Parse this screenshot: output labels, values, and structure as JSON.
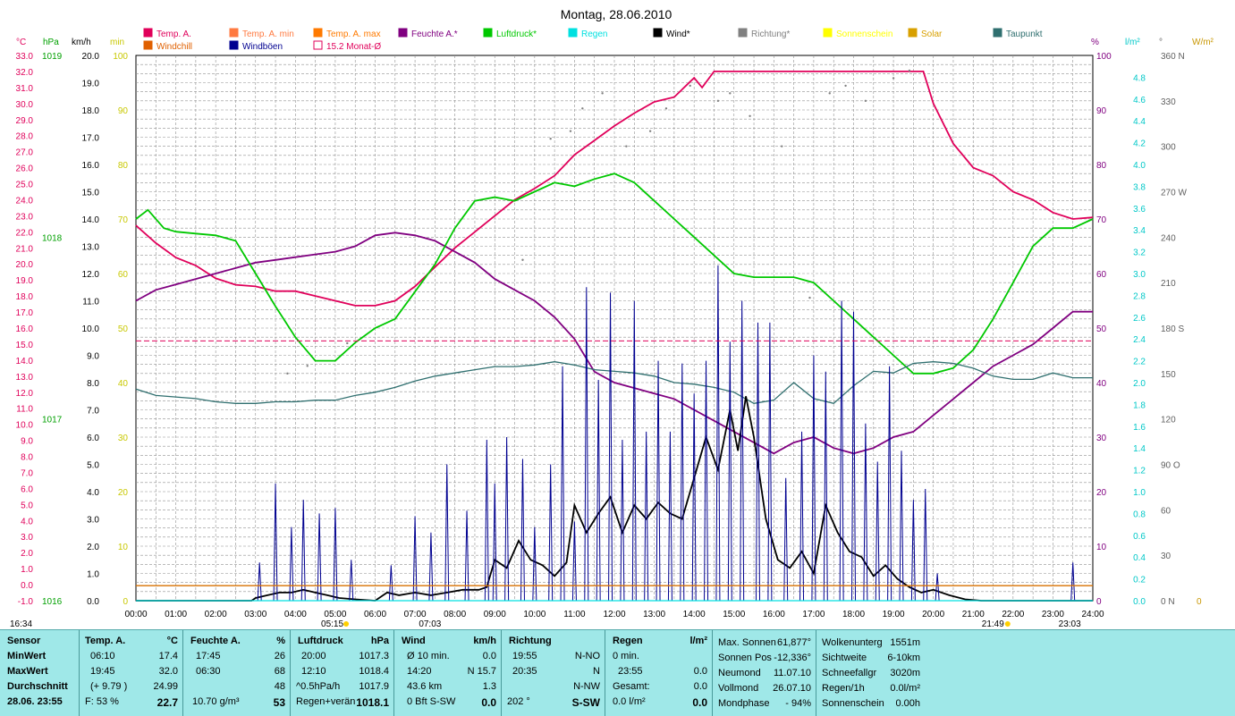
{
  "chart_data": {
    "type": "line",
    "title": "Montag, 28.06.2010",
    "x_ticks": [
      "00:00",
      "01:00",
      "02:00",
      "03:00",
      "04:00",
      "05:00",
      "06:00",
      "07:00",
      "08:00",
      "09:00",
      "10:00",
      "11:00",
      "12:00",
      "13:00",
      "14:00",
      "15:00",
      "16:00",
      "17:00",
      "18:00",
      "19:00",
      "20:00",
      "21:00",
      "22:00",
      "23:00",
      "24:00"
    ],
    "x_range_hours": [
      0,
      24
    ],
    "sun_marks": {
      "sunrise": "05:15",
      "sunrise_hour": 5.25,
      "noon": "07:03",
      "noon_hour": 7.05,
      "sunset": "21:49",
      "sunset_hour": 21.82,
      "moon": "23:03",
      "moon_hour": 23.05
    },
    "axes": {
      "temp": {
        "unit": "°C",
        "min": -1.0,
        "max": 33.0,
        "step": 1.0,
        "color": "#e0005a"
      },
      "pressure": {
        "unit": "hPa",
        "min": 1016,
        "max": 1019,
        "ticks": [
          1016,
          1017,
          1018,
          1019
        ],
        "color": "#00a000"
      },
      "wind": {
        "unit": "km/h",
        "min": 0.0,
        "max": 20.0,
        "step": 1.0,
        "color": "#000000"
      },
      "min": {
        "unit": "min",
        "min": 0,
        "max": 100,
        "step": 10,
        "color": "#c8c800"
      },
      "humidity": {
        "unit": "%",
        "min": 0,
        "max": 100,
        "step": 10,
        "color": "#800080"
      },
      "rain": {
        "unit": "l/m²",
        "min": 0.0,
        "max": 5.0,
        "step": 0.2,
        "color": "#00c8c8"
      },
      "direction": {
        "unit": "°",
        "ticks": [
          [
            0,
            "0 N"
          ],
          [
            30,
            "30"
          ],
          [
            60,
            "60"
          ],
          [
            90,
            "90 O"
          ],
          [
            120,
            "120"
          ],
          [
            150,
            "150"
          ],
          [
            180,
            "180 S"
          ],
          [
            210,
            "210"
          ],
          [
            240,
            "240"
          ],
          [
            270,
            "270 W"
          ],
          [
            300,
            "300"
          ],
          [
            330,
            "330"
          ],
          [
            360,
            "360 N"
          ]
        ]
      },
      "solar": {
        "unit": "W/m²",
        "min": 0,
        "max": 0,
        "color": "#c89600"
      }
    },
    "legend": [
      {
        "label": "Temp. A.",
        "color": "#e0005a"
      },
      {
        "label": "Temp. A. min",
        "color": "#ff7a40"
      },
      {
        "label": "Temp. A. max",
        "color": "#ff7a00"
      },
      {
        "label": "Feuchte A.*",
        "color": "#800080"
      },
      {
        "label": "Luftdruck*",
        "color": "#00c800"
      },
      {
        "label": "Regen",
        "color": "#00e0e0"
      },
      {
        "label": "Wind*",
        "color": "#000000"
      },
      {
        "label": "Richtung*",
        "color": "#808080"
      },
      {
        "label": "Sonnenschein",
        "color": "#ffff00"
      },
      {
        "label": "Solar",
        "color": "#d8a000"
      },
      {
        "label": "Taupunkt",
        "color": "#2f6f6f"
      },
      {
        "label": "Windchill",
        "color": "#e06000"
      },
      {
        "label": "Windböen",
        "color": "#000090"
      },
      {
        "label": "15.2 Monat-Ø",
        "color": "#e0005a"
      }
    ],
    "series": [
      {
        "name": "Temp. A.",
        "axis": "temp",
        "color": "#e0005a",
        "x": [
          0,
          0.5,
          1,
          1.5,
          2,
          2.5,
          3,
          3.5,
          4,
          4.5,
          5,
          5.5,
          6,
          6.5,
          7,
          7.5,
          8,
          8.5,
          9,
          9.5,
          10,
          10.5,
          11,
          11.5,
          12,
          12.5,
          13,
          13.5,
          14,
          14.2,
          14.5,
          15,
          15.5,
          16,
          16.5,
          17,
          17.5,
          18,
          18.5,
          19,
          19.5,
          19.75,
          20,
          20.5,
          21,
          21.5,
          22,
          22.5,
          23,
          23.5,
          24
        ],
        "y": [
          22.4,
          21.3,
          20.4,
          19.9,
          19.1,
          18.7,
          18.6,
          18.3,
          18.3,
          18.0,
          17.7,
          17.4,
          17.4,
          17.7,
          18.6,
          19.8,
          21.0,
          22.0,
          23.0,
          24.0,
          24.7,
          25.5,
          26.8,
          27.7,
          28.6,
          29.4,
          30.1,
          30.4,
          31.6,
          31.0,
          32.0,
          32.0,
          32.0,
          32.0,
          32.0,
          32.0,
          32.0,
          32.0,
          32.0,
          32.0,
          32.0,
          32.0,
          30.0,
          27.5,
          26.0,
          25.5,
          24.5,
          24.0,
          23.2,
          22.8,
          22.9
        ]
      },
      {
        "name": "Feuchte A.*",
        "axis": "humidity",
        "color": "#800080",
        "x": [
          0,
          0.5,
          1,
          1.5,
          2,
          2.5,
          3,
          3.5,
          4,
          4.5,
          5,
          5.5,
          6,
          6.5,
          7,
          7.5,
          8,
          8.5,
          9,
          9.5,
          10,
          10.5,
          11,
          11.5,
          12,
          12.5,
          13,
          13.5,
          14,
          14.5,
          15,
          15.5,
          16,
          16.5,
          17,
          17.5,
          18,
          18.5,
          19,
          19.5,
          20,
          20.5,
          21,
          21.5,
          22,
          22.5,
          23,
          23.5,
          24
        ],
        "y": [
          55,
          57,
          58,
          59,
          60,
          61,
          62,
          62.5,
          63,
          63.5,
          64,
          65,
          67,
          67.5,
          67,
          66,
          64,
          62,
          59,
          57,
          55,
          52,
          48,
          42,
          40,
          39,
          38,
          37,
          35,
          33,
          31,
          29,
          27,
          29,
          30,
          28,
          27,
          28,
          30,
          31,
          34,
          37,
          40,
          43,
          45,
          47,
          50,
          53,
          53
        ]
      },
      {
        "name": "Luftdruck*",
        "axis": "pressure",
        "color": "#00c800",
        "x": [
          0,
          0.3,
          0.7,
          1,
          1.5,
          2,
          2.5,
          3,
          3.5,
          4,
          4.5,
          5,
          5.5,
          6,
          6.5,
          7,
          7.5,
          8,
          8.5,
          9,
          9.5,
          10,
          10.5,
          11,
          11.5,
          12,
          12.5,
          13,
          13.5,
          14,
          14.5,
          15,
          15.5,
          16,
          16.5,
          17,
          17.5,
          18,
          18.5,
          19,
          19.5,
          20,
          20.5,
          21,
          21.5,
          22,
          22.5,
          23,
          23.5,
          24
        ],
        "y": [
          1018.1,
          1018.15,
          1018.05,
          1018.03,
          1018.02,
          1018.01,
          1017.98,
          1017.8,
          1017.62,
          1017.45,
          1017.32,
          1017.32,
          1017.42,
          1017.5,
          1017.55,
          1017.7,
          1017.85,
          1018.05,
          1018.2,
          1018.22,
          1018.2,
          1018.25,
          1018.3,
          1018.28,
          1018.32,
          1018.35,
          1018.3,
          1018.2,
          1018.1,
          1018.0,
          1017.9,
          1017.8,
          1017.78,
          1017.78,
          1017.78,
          1017.75,
          1017.65,
          1017.55,
          1017.45,
          1017.35,
          1017.25,
          1017.25,
          1017.28,
          1017.38,
          1017.55,
          1017.75,
          1017.95,
          1018.05,
          1018.05,
          1018.1
        ]
      },
      {
        "name": "Taupunkt",
        "axis": "temp",
        "color": "#2f6f6f",
        "x": [
          0,
          0.5,
          1,
          1.5,
          2,
          2.5,
          3,
          3.5,
          4,
          4.5,
          5,
          5.5,
          6,
          6.5,
          7,
          7.5,
          8,
          8.5,
          9,
          9.5,
          10,
          10.5,
          11,
          11.5,
          12,
          12.5,
          13,
          13.5,
          14,
          14.5,
          15,
          15.5,
          16,
          16.5,
          17,
          17.5,
          18,
          18.5,
          19,
          19.5,
          20,
          20.5,
          21,
          21.5,
          22,
          22.5,
          23,
          23.5,
          24
        ],
        "y": [
          12.2,
          11.8,
          11.7,
          11.6,
          11.4,
          11.3,
          11.3,
          11.4,
          11.4,
          11.5,
          11.5,
          11.8,
          12.0,
          12.3,
          12.7,
          13.0,
          13.2,
          13.4,
          13.6,
          13.6,
          13.7,
          13.9,
          13.7,
          13.4,
          13.3,
          13.2,
          13.0,
          12.6,
          12.5,
          12.3,
          12.0,
          11.3,
          11.5,
          12.6,
          11.6,
          11.3,
          12.4,
          13.3,
          13.2,
          13.8,
          13.9,
          13.8,
          13.5,
          13.0,
          12.8,
          12.8,
          13.2,
          12.9,
          12.9
        ]
      },
      {
        "name": "Wind*",
        "axis": "wind",
        "color": "#000000",
        "x": [
          0,
          2.9,
          3.0,
          3.3,
          3.6,
          3.9,
          4.2,
          4.5,
          4.8,
          5.1,
          5.5,
          6,
          6.3,
          6.6,
          7.0,
          7.4,
          7.8,
          8.2,
          8.6,
          8.8,
          9.0,
          9.3,
          9.6,
          9.9,
          10.2,
          10.5,
          10.8,
          11.0,
          11.3,
          11.6,
          11.9,
          12.2,
          12.5,
          12.8,
          13.1,
          13.4,
          13.7,
          14.0,
          14.3,
          14.6,
          14.9,
          15.1,
          15.3,
          15.5,
          15.8,
          16.1,
          16.4,
          16.7,
          17.0,
          17.3,
          17.6,
          17.9,
          18.2,
          18.5,
          18.8,
          19.1,
          19.4,
          19.7,
          20.0,
          20.4,
          20.8,
          21.2,
          24
        ],
        "y": [
          0,
          0,
          0.1,
          0.2,
          0.3,
          0.3,
          0.4,
          0.3,
          0.2,
          0.1,
          0.05,
          0,
          0.3,
          0.2,
          0.3,
          0.2,
          0.3,
          0.4,
          0.4,
          0.5,
          1.5,
          1.2,
          2.2,
          1.5,
          1.3,
          0.9,
          1.4,
          3.5,
          2.5,
          3.2,
          3.8,
          2.5,
          3.5,
          3.0,
          3.6,
          3.2,
          3.0,
          4.5,
          6.0,
          4.8,
          7.0,
          5.5,
          7.5,
          6.0,
          3.0,
          1.5,
          1.2,
          1.8,
          1.0,
          3.5,
          2.5,
          1.8,
          1.6,
          0.9,
          1.3,
          0.8,
          0.5,
          0.3,
          0.4,
          0.2,
          0.05,
          0,
          0
        ]
      },
      {
        "name": "Windböen",
        "axis": "wind",
        "color": "#000090",
        "style": "spikes",
        "x": [
          3.1,
          3.5,
          3.9,
          4.2,
          4.6,
          5.0,
          5.4,
          6.4,
          7.0,
          7.4,
          7.8,
          8.3,
          8.8,
          9.0,
          9.3,
          9.7,
          10.0,
          10.4,
          10.7,
          11.0,
          11.3,
          11.6,
          11.9,
          12.2,
          12.5,
          12.8,
          13.1,
          13.4,
          13.7,
          14.0,
          14.3,
          14.6,
          14.9,
          15.2,
          15.6,
          15.9,
          16.3,
          16.7,
          17.0,
          17.3,
          17.7,
          18.0,
          18.3,
          18.6,
          18.9,
          19.2,
          19.5,
          19.8,
          20.1,
          23.5
        ],
        "y": [
          1.4,
          4.3,
          2.7,
          3.7,
          3.2,
          3.4,
          1.5,
          1.3,
          3.1,
          2.5,
          5.0,
          3.3,
          5.9,
          4.3,
          6.0,
          5.2,
          2.7,
          5.0,
          8.6,
          2.9,
          11.5,
          8.1,
          11.3,
          5.9,
          11.0,
          6.2,
          8.8,
          6.2,
          8.7,
          7.6,
          8.8,
          12.3,
          9.5,
          11.0,
          10.2,
          10.2,
          4.5,
          6.2,
          9.0,
          8.4,
          11.0,
          10.6,
          6.5,
          5.1,
          8.6,
          5.5,
          3.7,
          4.1,
          1.0,
          1.4
        ]
      },
      {
        "name": "15.2 Monat-Ø",
        "axis": "temp",
        "color": "#e0005a",
        "style": "dashed",
        "x": [
          0,
          24
        ],
        "y": [
          15.2,
          15.2
        ]
      },
      {
        "name": "Solar",
        "axis": "wind",
        "color": "#d87000",
        "x": [
          0,
          24
        ],
        "y": [
          0.55,
          0.55
        ]
      },
      {
        "name": "Regen",
        "axis": "rain",
        "color": "#00e0e0",
        "x": [
          0,
          24
        ],
        "y": [
          0,
          0
        ]
      },
      {
        "name": "Richtung*",
        "axis": "direction",
        "color": "#808080",
        "style": "dots",
        "x": [
          3.8,
          4.3,
          5.3,
          9.7,
          10.4,
          10.9,
          11.2,
          11.7,
          12.3,
          12.9,
          13.3,
          13.9,
          14.6,
          14.9,
          15.4,
          16.2,
          16.9,
          17.4,
          17.8,
          18.3,
          19.0,
          19.4
        ],
        "y": [
          150,
          155,
          170,
          225,
          305,
          310,
          325,
          335,
          300,
          310,
          325,
          340,
          330,
          335,
          320,
          300,
          200,
          335,
          340,
          330,
          345,
          350
        ]
      }
    ]
  },
  "stats": {
    "header": {
      "sensor": "Sensor",
      "temp": "Temp. A.",
      "temp_unit": "°C",
      "hum": "Feuchte A.",
      "hum_unit": "%",
      "press": "Luftdruck",
      "press_unit": "hPa",
      "wind": "Wind",
      "wind_unit": "km/h",
      "dir": "Richtung",
      "rain": "Regen",
      "rain_unit": "l/m²"
    },
    "labels": [
      "MinWert",
      "MaxWert",
      "Durchschnitt"
    ],
    "date": "28.06. 23:55",
    "temp": [
      [
        "06:10",
        "17.4"
      ],
      [
        "19:45",
        "32.0"
      ],
      [
        "(+ 9.79 )",
        "24.99"
      ],
      [
        "F: 53 %",
        "22.7"
      ]
    ],
    "hum": [
      [
        "17:45",
        "26"
      ],
      [
        "06:30",
        "68"
      ],
      [
        "",
        "48"
      ],
      [
        "10.70 g/m³",
        "53"
      ]
    ],
    "press": [
      [
        "20:00",
        "1017.3"
      ],
      [
        "12:10",
        "1018.4"
      ],
      [
        "^0.5hPa/h",
        "1017.9"
      ],
      [
        "Regen+verän",
        "1018.1"
      ]
    ],
    "wind": [
      [
        "Ø 10 min.",
        "0.0"
      ],
      [
        "14:20",
        "N 15.7"
      ],
      [
        "43.6 km",
        "1.3"
      ],
      [
        "0 Bft S-SW",
        "0.0"
      ]
    ],
    "dir": [
      [
        "19:55",
        "N-NO"
      ],
      [
        "20:35",
        "N"
      ],
      [
        "",
        "N-NW"
      ],
      [
        "202 °",
        "S-SW"
      ]
    ],
    "rain": [
      [
        "0 min.",
        ""
      ],
      [
        "23:55",
        "0.0"
      ],
      [
        "Gesamt:",
        "0.0"
      ],
      [
        "0.0 l/m²",
        "0.0"
      ]
    ],
    "sun": [
      [
        "Max. Sonnen",
        "61,877°"
      ],
      [
        "Sonnen Pos",
        "-12,336°"
      ],
      [
        "Neumond",
        "11.07.10"
      ],
      [
        "Vollmond",
        "26.07.10"
      ],
      [
        "Mondphase",
        "- 94%"
      ]
    ],
    "misc": [
      [
        "Wolkenunterg",
        "1551m"
      ],
      [
        "Sichtweite",
        "6-10km"
      ],
      [
        "Schneefallgr",
        "3020m"
      ],
      [
        "Regen/1h",
        "0.0l/m²"
      ],
      [
        "Sonnenschein",
        "0.00h"
      ]
    ]
  }
}
